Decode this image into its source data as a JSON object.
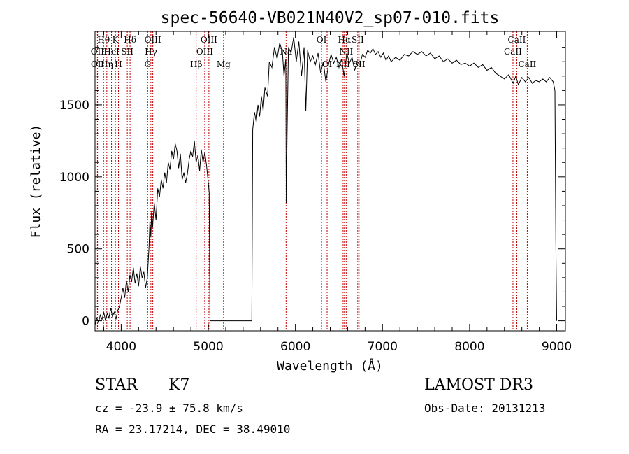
{
  "chart_data": {
    "type": "line",
    "title": "spec-56640-VB021N40V2_sp07-010.fits",
    "xlabel": "Wavelength (Å)",
    "ylabel": "Flux (relative)",
    "xlim": [
      3700,
      9100
    ],
    "ylim": [
      -70,
      2010
    ],
    "xticks": [
      4000,
      5000,
      6000,
      7000,
      8000,
      9000
    ],
    "yticks": [
      0,
      500,
      1000,
      1500
    ],
    "spectrum": [
      [
        3700,
        -30
      ],
      [
        3720,
        20
      ],
      [
        3740,
        -10
      ],
      [
        3760,
        40
      ],
      [
        3780,
        10
      ],
      [
        3800,
        60
      ],
      [
        3820,
        0
      ],
      [
        3840,
        50
      ],
      [
        3860,
        20
      ],
      [
        3880,
        90
      ],
      [
        3900,
        30
      ],
      [
        3920,
        60
      ],
      [
        3940,
        10
      ],
      [
        3960,
        70
      ],
      [
        3980,
        100
      ],
      [
        4000,
        160
      ],
      [
        4020,
        230
      ],
      [
        4040,
        160
      ],
      [
        4060,
        280
      ],
      [
        4080,
        200
      ],
      [
        4100,
        320
      ],
      [
        4120,
        270
      ],
      [
        4140,
        370
      ],
      [
        4160,
        260
      ],
      [
        4180,
        330
      ],
      [
        4200,
        240
      ],
      [
        4220,
        380
      ],
      [
        4240,
        300
      ],
      [
        4260,
        340
      ],
      [
        4280,
        230
      ],
      [
        4300,
        300
      ],
      [
        4320,
        520
      ],
      [
        4330,
        700
      ],
      [
        4340,
        580
      ],
      [
        4350,
        760
      ],
      [
        4360,
        650
      ],
      [
        4380,
        820
      ],
      [
        4400,
        700
      ],
      [
        4420,
        920
      ],
      [
        4440,
        860
      ],
      [
        4460,
        980
      ],
      [
        4480,
        920
      ],
      [
        4500,
        1030
      ],
      [
        4520,
        960
      ],
      [
        4540,
        1100
      ],
      [
        4560,
        1050
      ],
      [
        4580,
        1180
      ],
      [
        4600,
        1120
      ],
      [
        4620,
        1230
      ],
      [
        4640,
        1180
      ],
      [
        4660,
        1060
      ],
      [
        4680,
        1160
      ],
      [
        4700,
        980
      ],
      [
        4720,
        1030
      ],
      [
        4740,
        960
      ],
      [
        4760,
        1020
      ],
      [
        4780,
        1120
      ],
      [
        4800,
        1180
      ],
      [
        4820,
        1140
      ],
      [
        4840,
        1250
      ],
      [
        4860,
        1100
      ],
      [
        4880,
        1150
      ],
      [
        4900,
        1040
      ],
      [
        4920,
        1190
      ],
      [
        4940,
        1100
      ],
      [
        4960,
        1170
      ],
      [
        4980,
        1080
      ],
      [
        5000,
        960
      ],
      [
        5010,
        890
      ],
      [
        5020,
        0
      ],
      [
        5500,
        0
      ],
      [
        5510,
        1330
      ],
      [
        5530,
        1450
      ],
      [
        5550,
        1380
      ],
      [
        5570,
        1500
      ],
      [
        5590,
        1420
      ],
      [
        5610,
        1560
      ],
      [
        5630,
        1460
      ],
      [
        5650,
        1620
      ],
      [
        5680,
        1560
      ],
      [
        5700,
        1800
      ],
      [
        5730,
        1760
      ],
      [
        5760,
        1900
      ],
      [
        5790,
        1820
      ],
      [
        5820,
        1930
      ],
      [
        5850,
        1870
      ],
      [
        5870,
        1700
      ],
      [
        5890,
        1820
      ],
      [
        5895,
        820
      ],
      [
        5905,
        1300
      ],
      [
        5920,
        1900
      ],
      [
        5950,
        1860
      ],
      [
        5980,
        1970
      ],
      [
        6010,
        1800
      ],
      [
        6040,
        1940
      ],
      [
        6070,
        1700
      ],
      [
        6100,
        1900
      ],
      [
        6120,
        1460
      ],
      [
        6140,
        1880
      ],
      [
        6170,
        1800
      ],
      [
        6200,
        1840
      ],
      [
        6230,
        1780
      ],
      [
        6260,
        1860
      ],
      [
        6290,
        1720
      ],
      [
        6320,
        1800
      ],
      [
        6350,
        1660
      ],
      [
        6380,
        1780
      ],
      [
        6410,
        1850
      ],
      [
        6440,
        1790
      ],
      [
        6470,
        1830
      ],
      [
        6500,
        1760
      ],
      [
        6530,
        1820
      ],
      [
        6560,
        1700
      ],
      [
        6590,
        1860
      ],
      [
        6620,
        1790
      ],
      [
        6650,
        1830
      ],
      [
        6680,
        1740
      ],
      [
        6710,
        1800
      ],
      [
        6740,
        1780
      ],
      [
        6770,
        1850
      ],
      [
        6800,
        1830
      ],
      [
        6830,
        1880
      ],
      [
        6860,
        1860
      ],
      [
        6890,
        1890
      ],
      [
        6920,
        1850
      ],
      [
        6950,
        1870
      ],
      [
        6980,
        1830
      ],
      [
        7010,
        1860
      ],
      [
        7040,
        1810
      ],
      [
        7070,
        1840
      ],
      [
        7100,
        1800
      ],
      [
        7150,
        1830
      ],
      [
        7200,
        1810
      ],
      [
        7250,
        1850
      ],
      [
        7300,
        1840
      ],
      [
        7350,
        1870
      ],
      [
        7400,
        1850
      ],
      [
        7450,
        1870
      ],
      [
        7500,
        1840
      ],
      [
        7550,
        1860
      ],
      [
        7600,
        1820
      ],
      [
        7650,
        1840
      ],
      [
        7700,
        1800
      ],
      [
        7750,
        1820
      ],
      [
        7800,
        1790
      ],
      [
        7850,
        1810
      ],
      [
        7900,
        1780
      ],
      [
        7950,
        1790
      ],
      [
        8000,
        1770
      ],
      [
        8050,
        1790
      ],
      [
        8100,
        1760
      ],
      [
        8150,
        1780
      ],
      [
        8200,
        1740
      ],
      [
        8250,
        1760
      ],
      [
        8300,
        1720
      ],
      [
        8350,
        1700
      ],
      [
        8400,
        1680
      ],
      [
        8450,
        1710
      ],
      [
        8500,
        1650
      ],
      [
        8530,
        1700
      ],
      [
        8560,
        1640
      ],
      [
        8600,
        1690
      ],
      [
        8640,
        1660
      ],
      [
        8680,
        1690
      ],
      [
        8720,
        1650
      ],
      [
        8760,
        1670
      ],
      [
        8800,
        1660
      ],
      [
        8840,
        1680
      ],
      [
        8880,
        1660
      ],
      [
        8920,
        1690
      ],
      [
        8960,
        1660
      ],
      [
        8980,
        1600
      ],
      [
        8990,
        560
      ],
      [
        9000,
        0
      ]
    ],
    "lines": [
      {
        "label": "Hθ",
        "wave": 3798,
        "row": 0
      },
      {
        "label": "OII",
        "wave": 3727,
        "row": 1
      },
      {
        "label": "OII",
        "wave": 3729,
        "row": 2
      },
      {
        "label": "Hη",
        "wave": 3835,
        "row": 2
      },
      {
        "label": "HeI",
        "wave": 3889,
        "row": 1
      },
      {
        "label": "K",
        "wave": 3934,
        "row": 0
      },
      {
        "label": "H",
        "wave": 3969,
        "row": 2
      },
      {
        "label": "SII",
        "wave": 4070,
        "row": 1
      },
      {
        "label": "Hδ",
        "wave": 4102,
        "row": 0
      },
      {
        "label": "G",
        "wave": 4304,
        "row": 2
      },
      {
        "label": "Hγ",
        "wave": 4341,
        "row": 1
      },
      {
        "label": "OIII",
        "wave": 4363,
        "row": 0
      },
      {
        "label": "Hβ",
        "wave": 4861,
        "row": 2
      },
      {
        "label": "OIII",
        "wave": 4959,
        "row": 1
      },
      {
        "label": "OIII",
        "wave": 5007,
        "row": 0
      },
      {
        "label": "Mg",
        "wave": 5175,
        "row": 2
      },
      {
        "label": "Na",
        "wave": 5893,
        "row": 1
      },
      {
        "label": "OI",
        "wave": 6300,
        "row": 0
      },
      {
        "label": "OI",
        "wave": 6364,
        "row": 2
      },
      {
        "label": "NII",
        "wave": 6548,
        "row": 2
      },
      {
        "label": "Hα",
        "wave": 6563,
        "row": 0
      },
      {
        "label": "NII",
        "wave": 6583,
        "row": 1
      },
      {
        "label": "SII",
        "wave": 6716,
        "row": 0
      },
      {
        "label": "SII",
        "wave": 6731,
        "row": 2
      },
      {
        "label": "CaII",
        "wave": 8498,
        "row": 1
      },
      {
        "label": "CaII",
        "wave": 8542,
        "row": 0
      },
      {
        "label": "CaII",
        "wave": 8662,
        "row": 2
      }
    ]
  },
  "info": {
    "object_class": "STAR",
    "subclass": "K7",
    "survey": "LAMOST DR3",
    "cz": "cz = -23.9 ± 75.8 km/s",
    "obs_date": "Obs-Date: 20131213",
    "radec": "RA =  23.17214, DEC =  38.49010"
  },
  "colors": {
    "spectrum": "#000000",
    "line_marker": "#c00000",
    "axes": "#000000"
  }
}
